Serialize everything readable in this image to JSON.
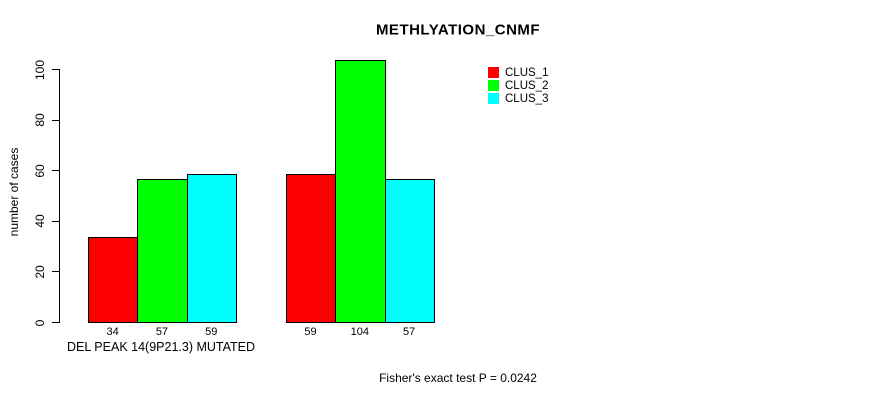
{
  "chart_data": {
    "type": "bar",
    "title": "METHLYATION_CNMF",
    "ylabel": "number of cases",
    "xlabel": "DEL PEAK 14(9P21.3) MUTATED",
    "ylim": [
      0,
      100
    ],
    "yticks": [
      0,
      20,
      40,
      60,
      80,
      100
    ],
    "grid": false,
    "categories": [
      "DEL PEAK 14(9P21.3) MUTATED",
      ""
    ],
    "series": [
      {
        "name": "CLUS_1",
        "color": "#ff0000",
        "values": [
          34,
          59
        ]
      },
      {
        "name": "CLUS_2",
        "color": "#00ff00",
        "values": [
          57,
          104
        ]
      },
      {
        "name": "CLUS_3",
        "color": "#00ffff",
        "values": [
          59,
          57
        ]
      }
    ],
    "bar_value_labels": [
      [
        34,
        57,
        59
      ],
      [
        59,
        104,
        57
      ]
    ],
    "bar_border_color": "#000000",
    "legend": {
      "position": "top-right",
      "entries": [
        "CLUS_1",
        "CLUS_2",
        "CLUS_3"
      ]
    },
    "annotation": "Fisher's exact test P = 0.0242"
  }
}
